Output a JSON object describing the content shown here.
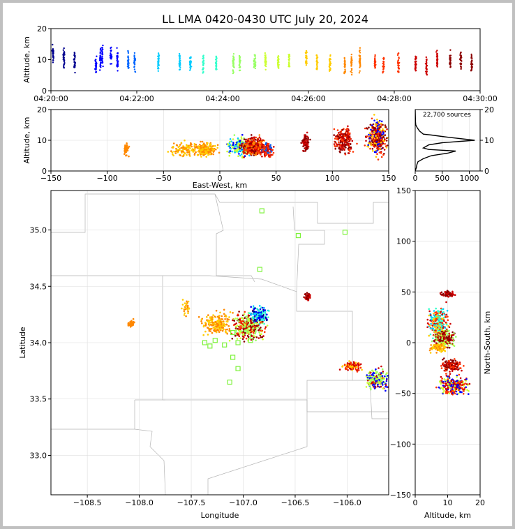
{
  "chart_data": {
    "type": "scatter",
    "title": "LL LMA 0420-0430 UTC July 20, 2024",
    "colors": [
      "#00008f",
      "#0000ff",
      "#0066ff",
      "#00ccff",
      "#33ffcc",
      "#99ff66",
      "#ccff33",
      "#ffcc00",
      "#ff8800",
      "#ff3300",
      "#cc0000",
      "#8b0000"
    ],
    "panels": {
      "time_altitude": {
        "ylabel": "Altitude, km",
        "ylim": [
          0,
          20
        ],
        "yticks": [
          "0",
          "10",
          "20"
        ],
        "xticks": [
          "04:20:00",
          "04:22:00",
          "04:24:00",
          "04:26:00",
          "04:28:00",
          "04:30:00"
        ],
        "xlim_minutes": [
          0,
          10
        ],
        "bursts": [
          {
            "t": 0.05,
            "alt": 11.5
          },
          {
            "t": 0.3,
            "alt": 10.5
          },
          {
            "t": 0.55,
            "alt": 9.5
          },
          {
            "t": 1.05,
            "alt": 8.5
          },
          {
            "t": 1.15,
            "alt": 10
          },
          {
            "t": 1.2,
            "alt": 11
          },
          {
            "t": 1.4,
            "alt": 11
          },
          {
            "t": 1.55,
            "alt": 10
          },
          {
            "t": 1.8,
            "alt": 9.5
          },
          {
            "t": 1.95,
            "alt": 9
          },
          {
            "t": 2.5,
            "alt": 9
          },
          {
            "t": 3.0,
            "alt": 9
          },
          {
            "t": 3.25,
            "alt": 8.5
          },
          {
            "t": 3.55,
            "alt": 8.5
          },
          {
            "t": 3.85,
            "alt": 9
          },
          {
            "t": 4.25,
            "alt": 9
          },
          {
            "t": 4.4,
            "alt": 9
          },
          {
            "t": 4.75,
            "alt": 9.5
          },
          {
            "t": 5.0,
            "alt": 9.5
          },
          {
            "t": 5.3,
            "alt": 9.5
          },
          {
            "t": 5.55,
            "alt": 9.5
          },
          {
            "t": 5.95,
            "alt": 10
          },
          {
            "t": 6.2,
            "alt": 9
          },
          {
            "t": 6.5,
            "alt": 9
          },
          {
            "t": 6.85,
            "alt": 8.5
          },
          {
            "t": 7.0,
            "alt": 9
          },
          {
            "t": 7.2,
            "alt": 9.5
          },
          {
            "t": 7.55,
            "alt": 9
          },
          {
            "t": 7.75,
            "alt": 8
          },
          {
            "t": 8.1,
            "alt": 9
          },
          {
            "t": 8.5,
            "alt": 9
          },
          {
            "t": 8.75,
            "alt": 8
          },
          {
            "t": 9.0,
            "alt": 10
          },
          {
            "t": 9.3,
            "alt": 9.5
          },
          {
            "t": 9.55,
            "alt": 9.5
          },
          {
            "t": 9.8,
            "alt": 9
          }
        ]
      },
      "ew_altitude": {
        "ylabel": "Altitude, km",
        "xlabel": "East-West, km",
        "xlim": [
          -150,
          150
        ],
        "ylim": [
          0,
          20
        ],
        "xticks": [
          "−150",
          "−100",
          "−50",
          "0",
          "50",
          "100",
          "150"
        ],
        "yticks": [
          "0",
          "10",
          "20"
        ],
        "clusters": [
          {
            "x": -83,
            "y": 7,
            "sx": 1.5,
            "sy": 1.5,
            "n": 40,
            "c": [
              8
            ]
          },
          {
            "x": -30,
            "y": 7,
            "sx": 10,
            "sy": 1.5,
            "n": 120,
            "c": [
              8,
              7
            ]
          },
          {
            "x": -12,
            "y": 7,
            "sx": 6,
            "sy": 1.5,
            "n": 200,
            "c": [
              8,
              7
            ]
          },
          {
            "x": 18,
            "y": 8,
            "sx": 7,
            "sy": 2,
            "n": 220,
            "c": [
              6,
              5,
              3,
              1
            ]
          },
          {
            "x": 30,
            "y": 8,
            "sx": 7,
            "sy": 2,
            "n": 380,
            "c": [
              10,
              9,
              11,
              8
            ]
          },
          {
            "x": 42,
            "y": 7,
            "sx": 4,
            "sy": 1.5,
            "n": 120,
            "c": [
              9,
              10,
              2
            ]
          },
          {
            "x": 76,
            "y": 9,
            "sx": 2,
            "sy": 2,
            "n": 80,
            "c": [
              10,
              11
            ]
          },
          {
            "x": 110,
            "y": 10,
            "sx": 6,
            "sy": 3,
            "n": 200,
            "c": [
              10,
              9,
              11
            ]
          },
          {
            "x": 140,
            "y": 11,
            "sx": 6,
            "sy": 4,
            "n": 320,
            "c": [
              10,
              9,
              11,
              1,
              7
            ]
          }
        ]
      },
      "altitude_histogram": {
        "note": "22,700 sources",
        "xlim": [
          0,
          1200
        ],
        "ylim": [
          0,
          20
        ],
        "xticks": [
          "0",
          "500",
          "1000"
        ],
        "yticks": [
          "0",
          "10",
          "20"
        ],
        "profile": [
          [
            0,
            0
          ],
          [
            20,
            1
          ],
          [
            30,
            2
          ],
          [
            50,
            3
          ],
          [
            150,
            4
          ],
          [
            300,
            5
          ],
          [
            600,
            5.8
          ],
          [
            750,
            6.5
          ],
          [
            250,
            7
          ],
          [
            150,
            7.5
          ],
          [
            250,
            8.5
          ],
          [
            500,
            9.2
          ],
          [
            1100,
            10
          ],
          [
            600,
            11
          ],
          [
            300,
            11.7
          ],
          [
            150,
            12
          ],
          [
            80,
            13
          ],
          [
            40,
            14
          ],
          [
            10,
            15
          ],
          [
            5,
            16
          ],
          [
            0,
            20
          ]
        ]
      },
      "plan_view": {
        "xlabel": "Longitude",
        "ylabel": "Latitude",
        "xlim": [
          -108.85,
          -105.6
        ],
        "ylim": [
          32.65,
          35.35
        ],
        "xticks": [
          "−108.5",
          "−108.0",
          "−107.5",
          "−107.0",
          "−106.5",
          "−106.0"
        ],
        "yticks": [
          "33.0",
          "33.5",
          "34.0",
          "34.5",
          "35.0"
        ],
        "stations": [
          [
            -106.82,
            35.17
          ],
          [
            -106.47,
            34.95
          ],
          [
            -106.02,
            34.98
          ],
          [
            -106.84,
            34.65
          ],
          [
            -107.05,
            34.0
          ],
          [
            -107.27,
            34.02
          ],
          [
            -107.37,
            34.0
          ],
          [
            -107.32,
            33.97
          ],
          [
            -107.18,
            33.98
          ],
          [
            -106.93,
            34.02
          ],
          [
            -107.1,
            34.09
          ],
          [
            -107.1,
            33.87
          ],
          [
            -107.05,
            33.77
          ],
          [
            -107.13,
            33.65
          ]
        ],
        "clusters": [
          {
            "x": -108.08,
            "y": 34.17,
            "sx": 0.02,
            "sy": 0.02,
            "n": 40,
            "c": [
              8
            ]
          },
          {
            "x": -107.25,
            "y": 34.17,
            "sx": 0.1,
            "sy": 0.07,
            "n": 200,
            "c": [
              8,
              7
            ]
          },
          {
            "x": -107.55,
            "y": 34.32,
            "sx": 0.03,
            "sy": 0.05,
            "n": 30,
            "c": [
              8,
              7
            ]
          },
          {
            "x": -106.95,
            "y": 34.15,
            "sx": 0.1,
            "sy": 0.08,
            "n": 350,
            "c": [
              10,
              9,
              11,
              5,
              6
            ]
          },
          {
            "x": -106.85,
            "y": 34.25,
            "sx": 0.06,
            "sy": 0.05,
            "n": 150,
            "c": [
              3,
              4,
              1,
              0
            ]
          },
          {
            "x": -106.38,
            "y": 34.41,
            "sx": 0.02,
            "sy": 0.02,
            "n": 60,
            "c": [
              10,
              11
            ]
          },
          {
            "x": -105.95,
            "y": 33.79,
            "sx": 0.07,
            "sy": 0.03,
            "n": 90,
            "c": [
              10,
              9,
              7
            ]
          },
          {
            "x": -105.7,
            "y": 33.67,
            "sx": 0.08,
            "sy": 0.06,
            "n": 200,
            "c": [
              10,
              6,
              1,
              5
            ]
          }
        ]
      },
      "ns_altitude": {
        "xlabel": "Altitude, km",
        "ylabel": "North-South, km",
        "xlim": [
          0,
          20
        ],
        "ylim": [
          -150,
          150
        ],
        "xticks": [
          "0",
          "10",
          "20"
        ],
        "yticks": [
          "−150",
          "−100",
          "−50",
          "0",
          "50",
          "100",
          "150"
        ],
        "clusters": [
          {
            "x": 10,
            "y": 48,
            "sx": 1.5,
            "sy": 2,
            "n": 60,
            "c": [
              10,
              11
            ]
          },
          {
            "x": 7,
            "y": 20,
            "sx": 2,
            "sy": 10,
            "n": 250,
            "c": [
              10,
              9,
              7,
              4,
              3
            ]
          },
          {
            "x": 9,
            "y": 5,
            "sx": 2,
            "sy": 6,
            "n": 250,
            "c": [
              10,
              11,
              5,
              6
            ]
          },
          {
            "x": 7,
            "y": -5,
            "sx": 2,
            "sy": 3,
            "n": 80,
            "c": [
              8,
              7
            ]
          },
          {
            "x": 11,
            "y": -22,
            "sx": 2,
            "sy": 4,
            "n": 150,
            "c": [
              10,
              9,
              11
            ]
          },
          {
            "x": 12,
            "y": -42,
            "sx": 3,
            "sy": 6,
            "n": 250,
            "c": [
              10,
              9,
              6,
              1
            ]
          }
        ]
      }
    }
  }
}
